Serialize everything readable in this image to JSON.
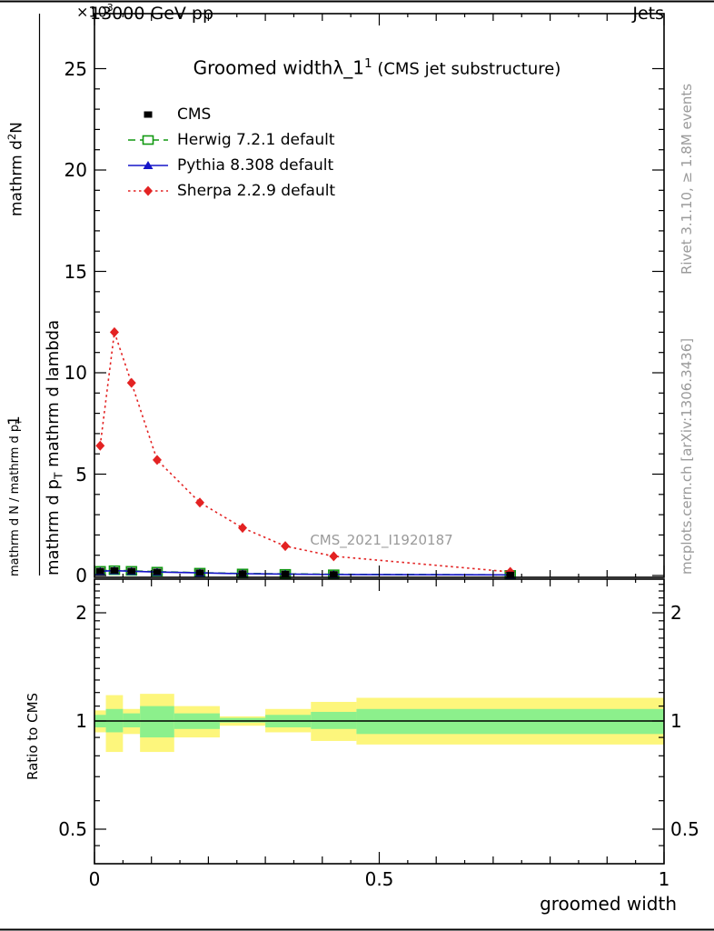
{
  "header": {
    "energy": "13000 GeV pp",
    "right": "Jets",
    "multiplier_base": "×10",
    "multiplier_exp": "3"
  },
  "title": {
    "main": "Groomed width",
    "lambda": "λ_1",
    "sup": "1",
    "paren": " (CMS jet substructure)"
  },
  "ylabel_parts": {
    "num_d": "mathrm d",
    "num_sup": "2",
    "num_N": "N",
    "one": "1",
    "norm": "mathrm d N / mathrm d p",
    "norm_sub": "T",
    "den_p": "mathrm d p",
    "den_sub": "T",
    "den_rest": " mathrm d lambda"
  },
  "watermarks": {
    "analysis": "CMS_2021_I1920187",
    "rivet": "Rivet 3.1.10, ≥ 1.8M events",
    "mcplots": "mcplots.cern.ch [arXiv:1306.3436]"
  },
  "chart_data": [
    {
      "type": "line",
      "title": "Groomed width λ_1^1 (CMS jet substructure)",
      "xlabel": "groomed width",
      "ylabel": "1 / (mathrm d N / mathrm d p_T) mathrm d^2 N / (mathrm d p_T mathrm d lambda)",
      "y_units_multiplier": "×10^3",
      "xlim": [
        0,
        1
      ],
      "ylim": [
        0,
        25
      ],
      "xticks": [
        0,
        0.5,
        1
      ],
      "xtick_labels": [
        "0",
        "0.5",
        "1"
      ],
      "yticks": [
        0,
        5,
        10,
        15,
        20,
        25
      ],
      "ytick_labels": [
        "0",
        "5",
        "10",
        "15",
        "20",
        "25"
      ],
      "legend_position": "top-left",
      "grid": false,
      "series": [
        {
          "name": "CMS",
          "color": "#000000",
          "line": "none",
          "marker": "square-filled",
          "x": [
            0.01,
            0.035,
            0.065,
            0.11,
            0.185,
            0.26,
            0.335,
            0.42,
            0.73
          ],
          "y": [
            0.22,
            0.25,
            0.22,
            0.18,
            0.14,
            0.1,
            0.08,
            0.06,
            0.03
          ]
        },
        {
          "name": "Herwig 7.2.1 default",
          "color": "#119911",
          "line": "dashed",
          "marker": "square-open",
          "x": [
            0.01,
            0.035,
            0.065,
            0.11,
            0.185,
            0.26,
            0.335,
            0.42,
            0.73
          ],
          "y": [
            0.23,
            0.26,
            0.23,
            0.19,
            0.14,
            0.1,
            0.08,
            0.06,
            0.03
          ]
        },
        {
          "name": "Pythia 8.308 default",
          "color": "#1515c8",
          "line": "solid",
          "marker": "triangle-filled",
          "x": [
            0.01,
            0.035,
            0.065,
            0.11,
            0.185,
            0.26,
            0.335,
            0.42,
            0.73
          ],
          "y": [
            0.21,
            0.24,
            0.21,
            0.17,
            0.13,
            0.09,
            0.07,
            0.05,
            0.03
          ]
        },
        {
          "name": "Sherpa 2.2.9 default",
          "color": "#e32222",
          "line": "dotted",
          "marker": "diamond-filled",
          "x": [
            0.01,
            0.035,
            0.065,
            0.11,
            0.185,
            0.26,
            0.335,
            0.42,
            0.73
          ],
          "y": [
            6.4,
            12.0,
            9.5,
            5.7,
            3.6,
            2.35,
            1.45,
            0.95,
            0.18
          ]
        }
      ]
    },
    {
      "type": "ratio",
      "ylabel": "Ratio to CMS",
      "yscale": "log",
      "ylim": [
        0.4,
        2.46
      ],
      "yticks": [
        0.5,
        1,
        2
      ],
      "ytick_labels": [
        "0.5",
        "1",
        "2"
      ],
      "reference_line": 1,
      "band_colors": {
        "total": "#fdf67c",
        "stat": "#8cf08c"
      },
      "bins": [
        {
          "x0": 0.0,
          "x1": 0.02,
          "total": [
            0.93,
            1.07
          ],
          "stat": [
            0.96,
            1.04
          ]
        },
        {
          "x0": 0.02,
          "x1": 0.05,
          "total": [
            0.82,
            1.18
          ],
          "stat": [
            0.93,
            1.08
          ]
        },
        {
          "x0": 0.05,
          "x1": 0.08,
          "total": [
            0.92,
            1.08
          ],
          "stat": [
            0.96,
            1.05
          ]
        },
        {
          "x0": 0.08,
          "x1": 0.14,
          "total": [
            0.82,
            1.19
          ],
          "stat": [
            0.9,
            1.1
          ]
        },
        {
          "x0": 0.14,
          "x1": 0.22,
          "total": [
            0.9,
            1.1
          ],
          "stat": [
            0.95,
            1.05
          ]
        },
        {
          "x0": 0.22,
          "x1": 0.3,
          "total": [
            0.97,
            1.03
          ],
          "stat": [
            0.99,
            1.02
          ]
        },
        {
          "x0": 0.3,
          "x1": 0.38,
          "total": [
            0.93,
            1.08
          ],
          "stat": [
            0.96,
            1.04
          ]
        },
        {
          "x0": 0.38,
          "x1": 0.46,
          "total": [
            0.88,
            1.13
          ],
          "stat": [
            0.95,
            1.06
          ]
        },
        {
          "x0": 0.46,
          "x1": 1.0,
          "total": [
            0.86,
            1.16
          ],
          "stat": [
            0.92,
            1.08
          ]
        }
      ]
    }
  ]
}
